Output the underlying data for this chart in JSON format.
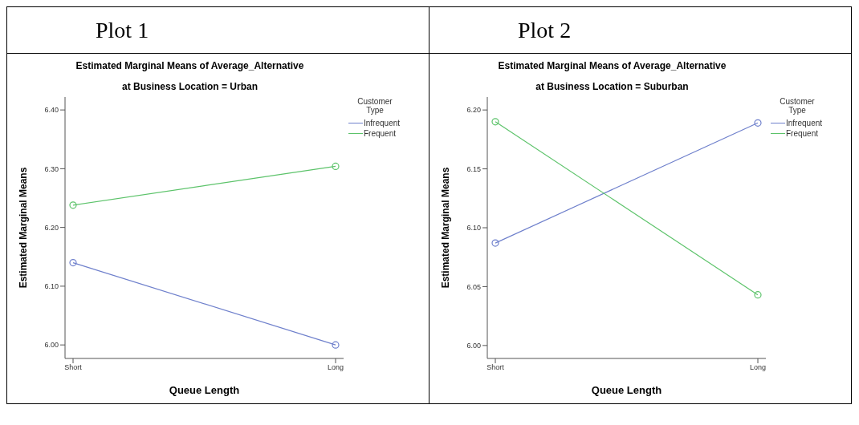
{
  "chart_data": [
    {
      "type": "line",
      "title": "Estimated Marginal Means of Average_Alternative",
      "subtitle": "at Business Location = Urban",
      "annotations": [
        "Plot 1"
      ],
      "xlabel": "Queue Length",
      "ylabel": "Estimated Marginal Means",
      "legend_title": "Customer Type",
      "legend": "top right",
      "marker": "circle",
      "grid": false,
      "categories": [
        "Short",
        "Long"
      ],
      "series": [
        {
          "name": "Infrequent",
          "color": "#6f80cc",
          "values": [
            6.14,
            6.0
          ]
        },
        {
          "name": "Frequent",
          "color": "#5cc36a",
          "values": [
            6.238,
            6.304
          ]
        }
      ],
      "ylim": [
        5.977,
        6.422
      ],
      "yticks": [
        {
          "value": 6.0,
          "label": "6.00"
        },
        {
          "value": 6.1,
          "label": "6.10"
        },
        {
          "value": 6.2,
          "label": "6.20"
        },
        {
          "value": 6.3,
          "label": "6.30"
        },
        {
          "value": 6.4,
          "label": "6.40"
        }
      ]
    },
    {
      "type": "line",
      "title": "Estimated Marginal Means of Average_Alternative",
      "subtitle": "at Business Location = Suburban",
      "annotations": [
        "Plot 2"
      ],
      "xlabel": "Queue Length",
      "ylabel": "Estimated Marginal Means",
      "legend_title": "Customer Type",
      "legend": "top right",
      "marker": "circle",
      "grid": false,
      "categories": [
        "Short",
        "Long"
      ],
      "series": [
        {
          "name": "Infrequent",
          "color": "#6f80cc",
          "values": [
            6.087,
            6.189
          ]
        },
        {
          "name": "Frequent",
          "color": "#5cc36a",
          "values": [
            6.19,
            6.043
          ]
        }
      ],
      "ylim": [
        5.989,
        6.211
      ],
      "yticks": [
        {
          "value": 6.0,
          "label": "6.00"
        },
        {
          "value": 6.05,
          "label": "6.05"
        },
        {
          "value": 6.1,
          "label": "6.10"
        },
        {
          "value": 6.15,
          "label": "6.15"
        },
        {
          "value": 6.2,
          "label": "6.20"
        }
      ]
    }
  ]
}
